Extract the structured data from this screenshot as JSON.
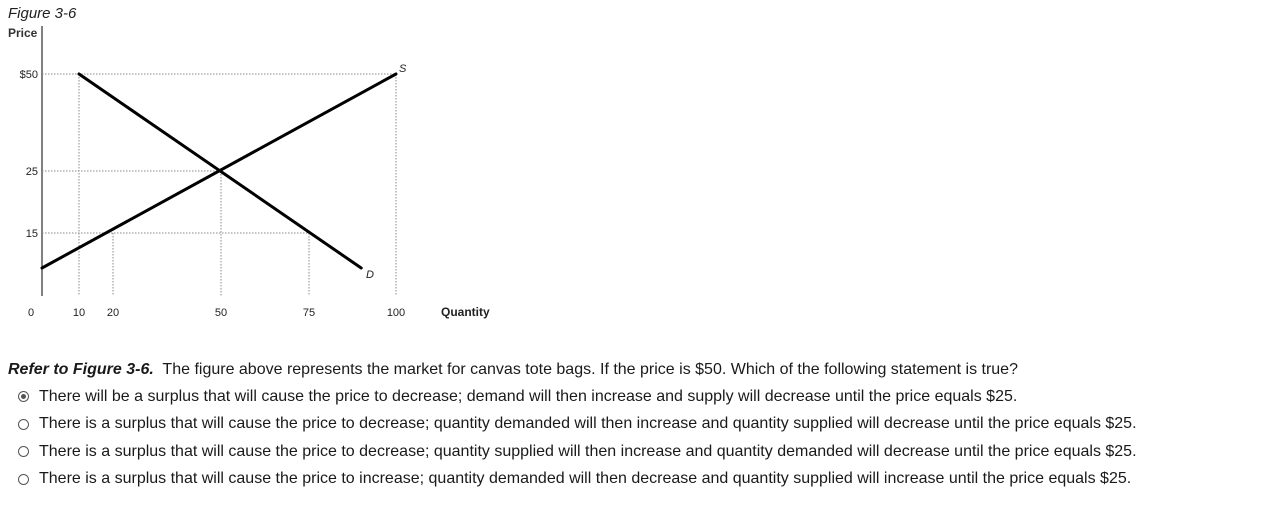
{
  "figure": {
    "title": "Figure 3-6"
  },
  "chart_data": {
    "type": "line",
    "title": "",
    "xlabel": "Quantity",
    "ylabel": "Price",
    "x_ticks": [
      "0",
      "10",
      "20",
      "50",
      "75",
      "100"
    ],
    "y_ticks": [
      "$50",
      "25",
      "15"
    ],
    "xlim": [
      0,
      120
    ],
    "ylim": [
      0,
      55
    ],
    "series": [
      {
        "name": "S",
        "x": [
          0,
          100
        ],
        "y": [
          5,
          50
        ]
      },
      {
        "name": "D",
        "x": [
          10,
          90
        ],
        "y": [
          50,
          5
        ]
      }
    ],
    "reference_points": [
      {
        "x": 10,
        "y": 50
      },
      {
        "x": 50,
        "y": 25
      },
      {
        "x": 100,
        "y": 50
      },
      {
        "x": 20,
        "y": 15
      },
      {
        "x": 75,
        "y": 15
      }
    ],
    "grid": false,
    "colors": {
      "curve": "#000000",
      "guide": "#8a8a8a"
    }
  },
  "question": {
    "ref": "Refer to Figure 3-6.",
    "text": "The figure above represents the market for canvas tote bags. If the price is $50. Which of the following statement is true?"
  },
  "options": [
    {
      "text": "There will be a surplus that will cause the price to decrease; demand will then increase and supply will decrease until the price equals $25.",
      "selected": true
    },
    {
      "text": "There is a surplus that will cause the price to decrease; quantity demanded will then increase and quantity supplied will decrease until the price equals $25.",
      "selected": false
    },
    {
      "text": "There is a surplus that will cause the price to decrease; quantity supplied will then increase and quantity demanded will decrease until the price equals $25.",
      "selected": false
    },
    {
      "text": "There is a surplus that will cause the price to increase; quantity demanded will then decrease and quantity supplied will increase until the price equals $25.",
      "selected": false
    }
  ]
}
